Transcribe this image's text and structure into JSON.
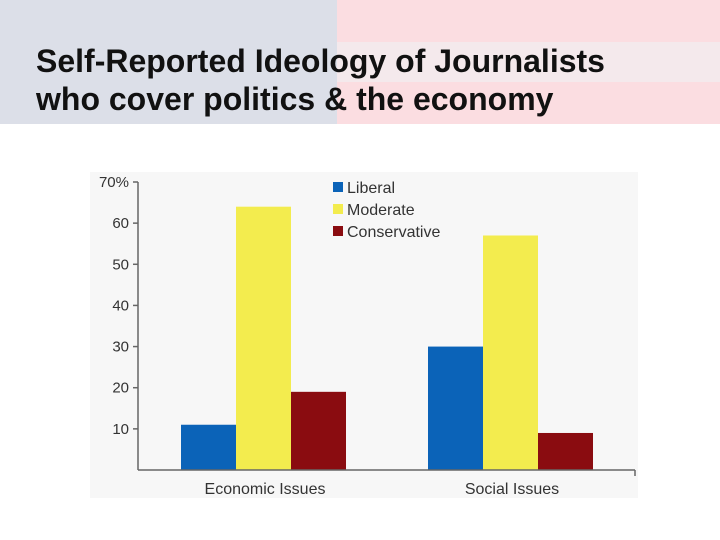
{
  "slide": {
    "title_line1": "Self-Reported Ideology of Journalists",
    "title_line2": "who cover politics & the economy"
  },
  "chart_data": {
    "type": "bar",
    "categories": [
      "Economic Issues",
      "Social Issues"
    ],
    "series": [
      {
        "name": "Liberal",
        "color": "#0b63b8",
        "values": [
          11,
          30
        ]
      },
      {
        "name": "Moderate",
        "color": "#f3ec4e",
        "values": [
          64,
          57
        ]
      },
      {
        "name": "Conservative",
        "color": "#8a0c10",
        "values": [
          19,
          9
        ]
      }
    ],
    "ylim": [
      0,
      70
    ],
    "yticks": [
      10,
      20,
      30,
      40,
      50,
      60,
      70
    ],
    "ytick_labels": [
      "10",
      "20",
      "30",
      "40",
      "50",
      "60",
      "70%"
    ],
    "legend_position": "top-center",
    "grid": false
  }
}
